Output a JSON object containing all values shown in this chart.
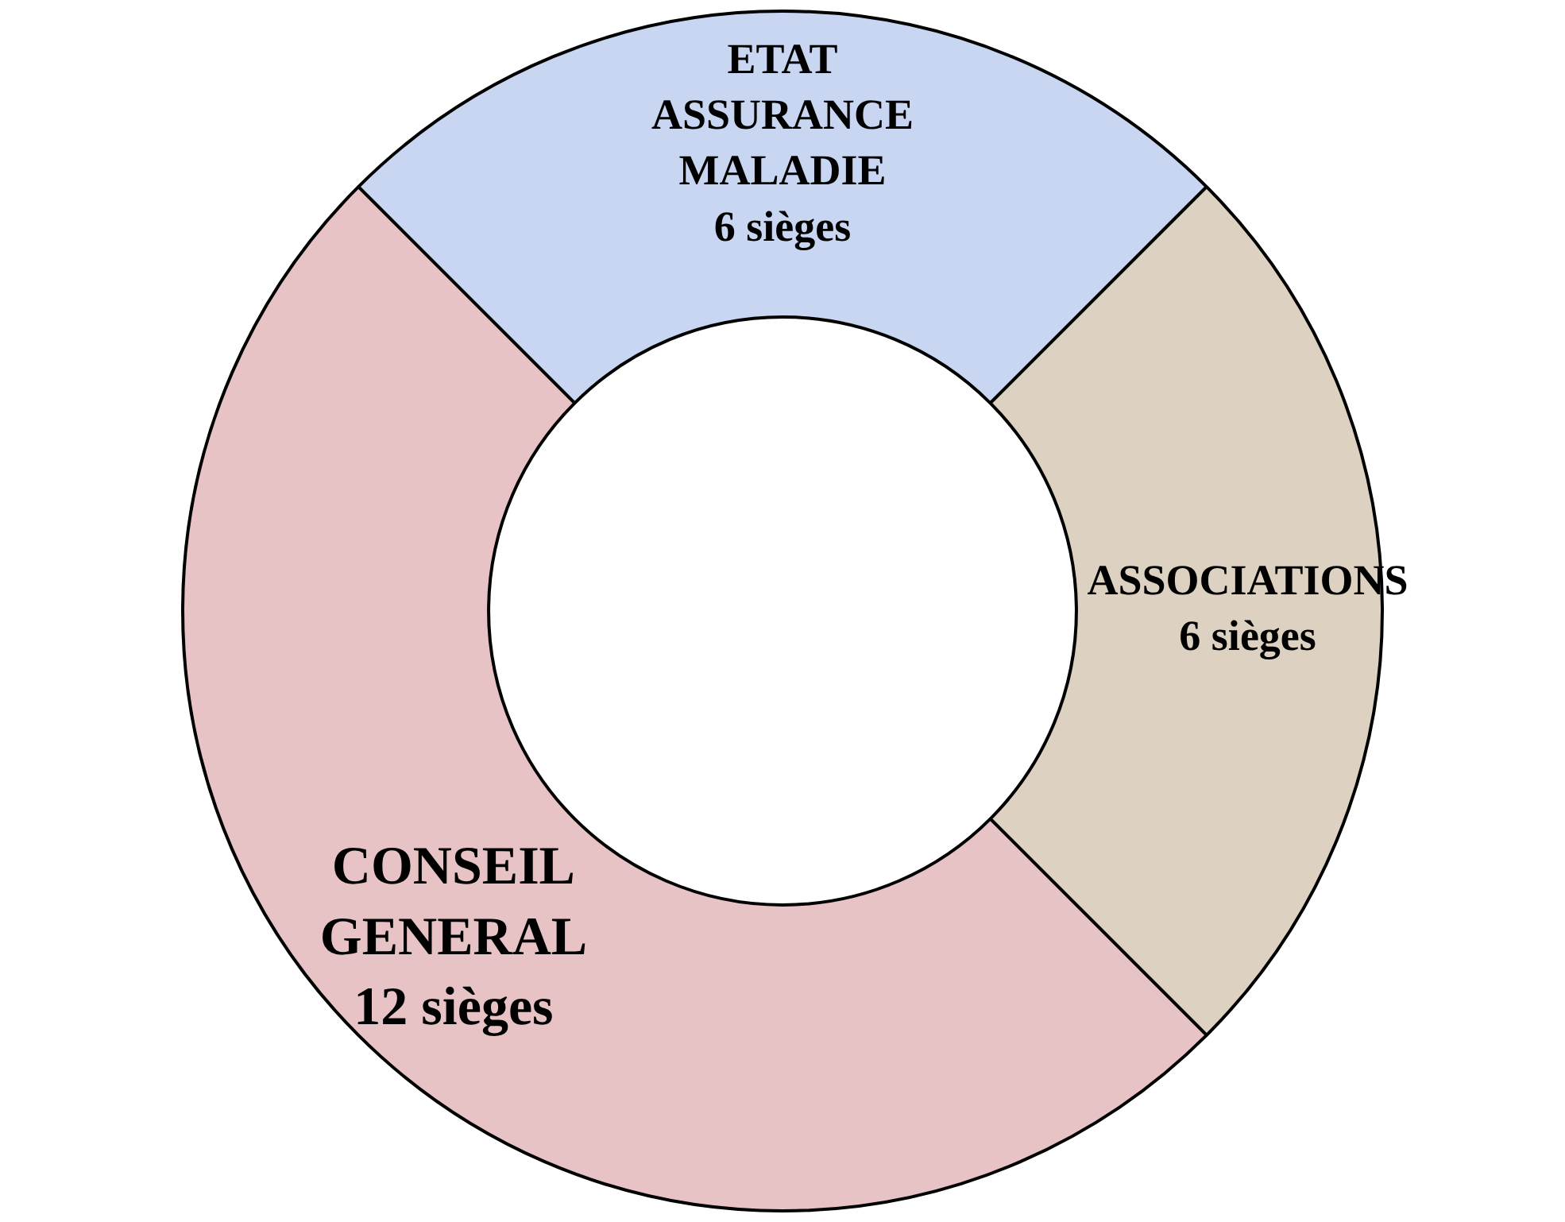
{
  "chart_data": {
    "type": "donut",
    "categories": [
      "ETAT ASSURANCE MALADIE",
      "ASSOCIATIONS",
      "CONSEIL GENERAL"
    ],
    "values": [
      6,
      6,
      12
    ],
    "value_labels": [
      "6 sièges",
      "6 sièges",
      "12 sièges"
    ],
    "colors": [
      "#c9d6f2",
      "#ddd1c1",
      "#e8c3c5"
    ],
    "legend": false
  }
}
